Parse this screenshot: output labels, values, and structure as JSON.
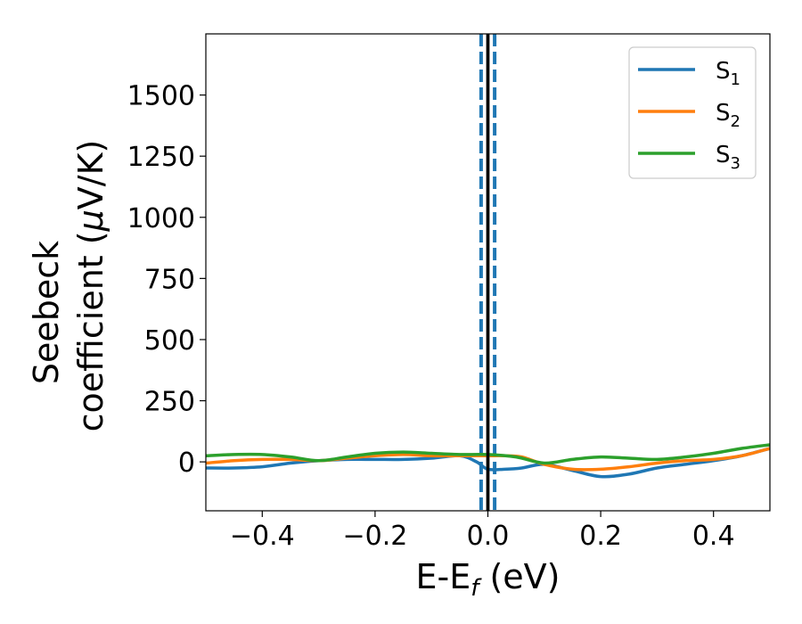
{
  "chart_data": {
    "type": "line",
    "xlabel": "E-E",
    "xlabel_sub": "f",
    "xlabel_unit": " (eV)",
    "ylabel_line1": "Seebeck",
    "ylabel_line2": "coefficient  (",
    "ylabel_mu": "μ",
    "ylabel_unit": "V/K)",
    "xlim": [
      -0.5,
      0.5
    ],
    "ylim": [
      -200,
      1750
    ],
    "xticks": [
      -0.4,
      -0.2,
      0.0,
      0.2,
      0.4
    ],
    "xtick_labels": [
      "−0.4",
      "−0.2",
      "0.0",
      "0.2",
      "0.4"
    ],
    "yticks": [
      0,
      250,
      500,
      750,
      1000,
      1250,
      1500
    ],
    "ytick_labels": [
      "0",
      "250",
      "500",
      "750",
      "1000",
      "1250",
      "1500"
    ],
    "legend_position": "top-right",
    "vertical_lines": [
      {
        "x": 0.0,
        "style": "solid",
        "color": "#000000"
      },
      {
        "x": -0.012,
        "style": "dashed",
        "color": "#1f77b4"
      },
      {
        "x": 0.012,
        "style": "dashed",
        "color": "#1f77b4"
      }
    ],
    "series": [
      {
        "name": "S",
        "sub": "1",
        "color": "#1f77b4",
        "x": [
          -0.5,
          -0.45,
          -0.4,
          -0.35,
          -0.3,
          -0.25,
          -0.2,
          -0.15,
          -0.1,
          -0.05,
          -0.02,
          0.0,
          0.03,
          0.06,
          0.1,
          0.15,
          0.2,
          0.25,
          0.3,
          0.35,
          0.4,
          0.45,
          0.5
        ],
        "values": [
          -25,
          -25,
          -20,
          -5,
          5,
          10,
          10,
          10,
          15,
          25,
          0,
          -30,
          -30,
          -25,
          -10,
          -35,
          -60,
          -50,
          -25,
          -10,
          5,
          25,
          55
        ]
      },
      {
        "name": "S",
        "sub": "2",
        "color": "#ff7f0e",
        "x": [
          -0.5,
          -0.45,
          -0.4,
          -0.35,
          -0.3,
          -0.25,
          -0.2,
          -0.15,
          -0.1,
          -0.05,
          0.0,
          0.03,
          0.06,
          0.1,
          0.15,
          0.2,
          0.25,
          0.3,
          0.35,
          0.4,
          0.45,
          0.5
        ],
        "values": [
          -5,
          5,
          10,
          10,
          5,
          15,
          25,
          30,
          25,
          25,
          25,
          25,
          20,
          -10,
          -30,
          -30,
          -20,
          -5,
          5,
          10,
          25,
          55
        ]
      },
      {
        "name": "S",
        "sub": "3",
        "color": "#2ca02c",
        "x": [
          -0.5,
          -0.45,
          -0.4,
          -0.35,
          -0.3,
          -0.25,
          -0.2,
          -0.15,
          -0.1,
          -0.05,
          0.0,
          0.05,
          0.1,
          0.15,
          0.2,
          0.25,
          0.3,
          0.35,
          0.4,
          0.45,
          0.5
        ],
        "values": [
          25,
          30,
          30,
          20,
          5,
          20,
          35,
          40,
          35,
          30,
          30,
          20,
          -5,
          10,
          20,
          15,
          10,
          20,
          35,
          55,
          70
        ]
      }
    ]
  }
}
